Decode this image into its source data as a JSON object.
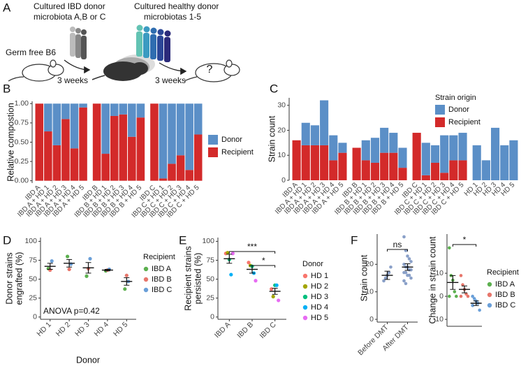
{
  "panel_a": {
    "panel": "A",
    "donor_text": [
      "Cultured IBD donor",
      "microbiota A,B or C"
    ],
    "healthy_text": [
      "Cultured healthy donor",
      "microbiotas 1-5"
    ],
    "mouse": "Germ free B6",
    "steps": [
      "3 weeks",
      "3 weeks"
    ],
    "outcome": "?"
  },
  "chart_data": [
    {
      "type": "bar",
      "panel": "B",
      "ylabel": "Relative compostion",
      "ylim": [
        -0.03,
        1.03
      ],
      "yticks": [
        {
          "value": 0,
          "label": "0.00"
        },
        {
          "value": 0.25,
          "label": "0.25"
        },
        {
          "value": 0.5,
          "label": "0.50"
        },
        {
          "value": 0.75,
          "label": "0.75"
        },
        {
          "value": 1,
          "label": "1.00"
        }
      ],
      "facets": [
        {
          "categories": [
            "IBD A",
            "IBD A + HD 1",
            "IBD A + HD 2",
            "IBD A + HD 3",
            "IBD A + HD 4",
            "IBD A + HD 5"
          ]
        },
        {
          "categories": [
            "IBD B",
            "IBD B + HD 1",
            "IBD B + HD 2",
            "IBD B + HD 3",
            "IBD B + HD 4",
            "IBD B + HD 5"
          ]
        },
        {
          "categories": [
            "IBD C",
            "IBD C + HD 1",
            "IBD C + HD 2",
            "IBD C + HD 3",
            "IBD C + HD 4",
            "IBD C + HD 5"
          ]
        }
      ],
      "series": [
        {
          "name": "Donor",
          "color": "#5b8fc7",
          "values": [
            0,
            0.36,
            0.54,
            0.2,
            0.58,
            0.05,
            0,
            0.65,
            0.16,
            0.14,
            0.43,
            0.18,
            0,
            0.97,
            0.78,
            0.67,
            0.86,
            0.4
          ]
        },
        {
          "name": "Recipient",
          "color": "#d32a2a",
          "values": [
            1,
            0.64,
            0.46,
            0.8,
            0.42,
            0.95,
            1,
            0.35,
            0.84,
            0.86,
            0.57,
            0.82,
            1,
            0.03,
            0.22,
            0.33,
            0.14,
            0.6
          ]
        }
      ]
    },
    {
      "type": "bar",
      "panel": "C",
      "ylabel": "Strain count",
      "legend_title": "Strain origin",
      "ylim": [
        0,
        33
      ],
      "yticks": [
        0,
        10,
        20,
        30
      ],
      "facets": [
        {
          "categories": [
            "IBD A",
            "IBD A + HD 1",
            "IBD A + HD 2",
            "IBD A + HD 3",
            "IBD A + HD 4",
            "IBD A + HD 5"
          ]
        },
        {
          "categories": [
            "IBD B",
            "IBD B + HD 1",
            "IBD B + HD 2",
            "IBD B + HD 3",
            "IBD B + HD 4",
            "IBD B + HD 5"
          ]
        },
        {
          "categories": [
            "IBD C",
            "IBD C + HD 1",
            "IBD C + HD 2",
            "IBD C + HD 3",
            "IBD C + HD 4",
            "IBD C + HD 5"
          ]
        },
        {
          "categories": [
            "HD 1",
            "HD 2",
            "HD 3",
            "HD 4",
            "HD 5"
          ]
        }
      ],
      "series": [
        {
          "name": "Donor",
          "color": "#5b8fc7",
          "values": [
            0,
            9,
            8,
            18,
            10,
            4,
            0,
            8,
            10,
            10,
            8,
            8,
            0,
            13,
            7,
            15,
            10,
            11,
            14,
            8,
            21,
            14,
            16
          ]
        },
        {
          "name": "Recipient",
          "color": "#d32a2a",
          "values": [
            16,
            14,
            14,
            14,
            8,
            11,
            13,
            8,
            7,
            11,
            11,
            5,
            19,
            2,
            7,
            3,
            8,
            8,
            0,
            0,
            0,
            0,
            0
          ]
        }
      ]
    },
    {
      "type": "dot",
      "panel": "D",
      "ylabel": [
        "Donor strains",
        "engrafted (%)"
      ],
      "xlabel": "Donor",
      "legend_title": "Recipient",
      "annotation": "ANOVA p=0.42",
      "categories": [
        "HD 1",
        "HD 2",
        "HD 3",
        "HD 4",
        "HD 5"
      ],
      "ylim": [
        -3,
        105
      ],
      "yticks": [
        0,
        25,
        50,
        75,
        100
      ],
      "series": [
        {
          "name": "IBD A",
          "color": "#5cb04f",
          "values": [
            64,
            80,
            54,
            61,
            37
          ]
        },
        {
          "name": "IBD B",
          "color": "#e7766b",
          "values": [
            62,
            63,
            64,
            62,
            55
          ]
        },
        {
          "name": "IBD C",
          "color": "#6a9fd8",
          "values": [
            74,
            70,
            77,
            63,
            47
          ]
        }
      ],
      "mean": [
        67,
        71,
        65,
        62,
        47
      ],
      "se": [
        4,
        5,
        7,
        1,
        5
      ]
    },
    {
      "type": "dot",
      "panel": "E",
      "ylabel": [
        "Recipient strains",
        "persisted (%)"
      ],
      "legend_title": "Donor",
      "categories": [
        "IBD A",
        "IBD B",
        "IBD C"
      ],
      "ylim": [
        -3,
        105
      ],
      "yticks": [
        0,
        25,
        50,
        75,
        100
      ],
      "series": [
        {
          "name": "HD 1",
          "color": "#f8766d",
          "values": [
            84,
            72,
            37
          ]
        },
        {
          "name": "HD 2",
          "color": "#a3a500",
          "values": [
            85,
            68,
            27
          ]
        },
        {
          "name": "HD 3",
          "color": "#00bf7d",
          "values": [
            76,
            67,
            42
          ]
        },
        {
          "name": "HD 4",
          "color": "#00b0f6",
          "values": [
            56,
            58,
            42
          ]
        },
        {
          "name": "HD 5",
          "color": "#e76bf3",
          "values": [
            84,
            48,
            22
          ]
        }
      ],
      "mean": [
        77,
        63,
        34
      ],
      "se": [
        6,
        5,
        4
      ],
      "brackets": [
        {
          "label": "***",
          "between": [
            0,
            2
          ]
        },
        {
          "label": "*",
          "between": [
            1,
            2
          ]
        }
      ]
    },
    {
      "type": "strip",
      "panel": "F",
      "ylabel": "Strain count",
      "categories": [
        "Before DMT",
        "After DMT"
      ],
      "point_color": "#8aa0c8",
      "points": [
        [
          14,
          15,
          16,
          17,
          19
        ],
        [
          30,
          25,
          23,
          22,
          21,
          20,
          19,
          19,
          18,
          18,
          17,
          17,
          16,
          16,
          15,
          14,
          13
        ]
      ],
      "mean": [
        16,
        19
      ],
      "se": [
        1.5,
        1.2
      ],
      "ylim": [
        -1,
        31
      ],
      "yticks": [
        0,
        10,
        20
      ],
      "brackets": [
        {
          "label": "ns",
          "between": [
            0,
            1
          ]
        }
      ]
    },
    {
      "type": "strip",
      "ylabel": "Change in strain count",
      "legend_title": "Recipient",
      "series": [
        {
          "name": "IBD A",
          "color": "#5cb04f",
          "values": [
            21,
            9,
            7,
            2,
            0,
            0
          ]
        },
        {
          "name": "IBD B",
          "color": "#e7766b",
          "values": [
            9,
            5,
            3,
            1,
            0,
            0
          ]
        },
        {
          "name": "IBD C",
          "color": "#6a9fd8",
          "values": [
            0,
            -1,
            -2,
            -3,
            -6,
            -4
          ]
        }
      ],
      "mean": [
        6,
        3,
        -3
      ],
      "se": [
        3,
        1.5,
        1
      ],
      "ylim": [
        -13,
        27
      ],
      "yticks": [
        -10,
        0,
        10
      ],
      "brackets": [
        {
          "label": "*",
          "between": [
            0,
            2
          ]
        }
      ]
    }
  ]
}
